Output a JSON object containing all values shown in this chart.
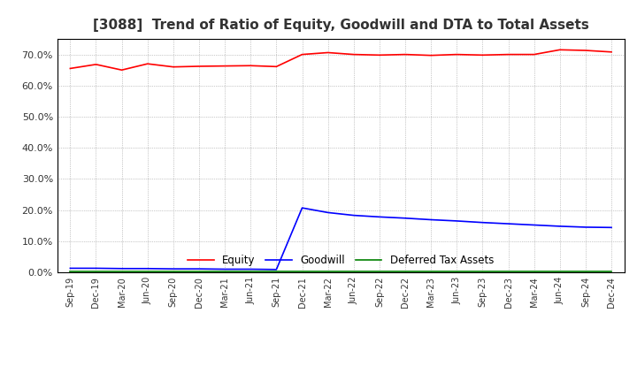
{
  "title": "[3088]  Trend of Ratio of Equity, Goodwill and DTA to Total Assets",
  "x_labels": [
    "Sep-19",
    "Dec-19",
    "Mar-20",
    "Jun-20",
    "Sep-20",
    "Dec-20",
    "Mar-21",
    "Jun-21",
    "Sep-21",
    "Dec-21",
    "Mar-22",
    "Jun-22",
    "Sep-22",
    "Dec-22",
    "Mar-23",
    "Jun-23",
    "Sep-23",
    "Dec-23",
    "Mar-24",
    "Jun-24",
    "Sep-24",
    "Dec-24"
  ],
  "equity": [
    0.655,
    0.668,
    0.65,
    0.67,
    0.66,
    0.662,
    0.663,
    0.664,
    0.661,
    0.7,
    0.706,
    0.7,
    0.698,
    0.7,
    0.697,
    0.7,
    0.698,
    0.7,
    0.7,
    0.715,
    0.713,
    0.708
  ],
  "goodwill": [
    0.013,
    0.013,
    0.012,
    0.012,
    0.011,
    0.011,
    0.01,
    0.01,
    0.009,
    0.207,
    0.192,
    0.183,
    0.178,
    0.174,
    0.169,
    0.165,
    0.16,
    0.156,
    0.152,
    0.148,
    0.145,
    0.144
  ],
  "dta": [
    0.002,
    0.002,
    0.002,
    0.002,
    0.002,
    0.002,
    0.002,
    0.002,
    0.002,
    0.002,
    0.002,
    0.002,
    0.002,
    0.002,
    0.002,
    0.002,
    0.002,
    0.002,
    0.002,
    0.002,
    0.002,
    0.002
  ],
  "equity_color": "#ff0000",
  "goodwill_color": "#0000ff",
  "dta_color": "#008000",
  "ylim": [
    0.0,
    0.75
  ],
  "yticks": [
    0.0,
    0.1,
    0.2,
    0.3,
    0.4,
    0.5,
    0.6,
    0.7
  ],
  "background_color": "#ffffff",
  "plot_bg_color": "#ffffff",
  "grid_color": "#999999",
  "title_fontsize": 11,
  "title_color": "#333333",
  "tick_label_color": "#333333",
  "legend_labels": [
    "Equity",
    "Goodwill",
    "Deferred Tax Assets"
  ]
}
